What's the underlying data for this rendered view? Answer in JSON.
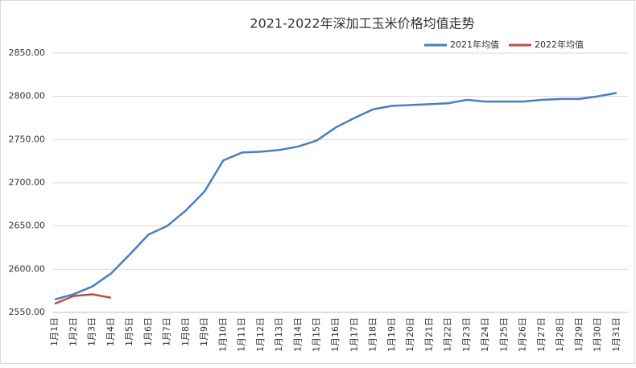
{
  "chart_data": {
    "type": "line",
    "title": "2021-2022年深加工玉米价格均值走势",
    "categories": [
      "1月1日",
      "1月2日",
      "1月3日",
      "1月4日",
      "1月5日",
      "1月6日",
      "1月7日",
      "1月8日",
      "1月9日",
      "1月10日",
      "1月11日",
      "1月12日",
      "1月13日",
      "1月14日",
      "1月15日",
      "1月16日",
      "1月17日",
      "1月18日",
      "1月19日",
      "1月20日",
      "1月21日",
      "1月22日",
      "1月23日",
      "1月24日",
      "1月25日",
      "1月26日",
      "1月27日",
      "1月28日",
      "1月29日",
      "1月30日",
      "1月31日"
    ],
    "series": [
      {
        "name": "2021年均值",
        "color": "#4a7ebb",
        "values": [
          2565,
          2571,
          2580,
          2595,
          2617,
          2640,
          2650,
          2668,
          2690,
          2726,
          2735,
          2736,
          2738,
          2742,
          2749,
          2764,
          2775,
          2785,
          2789,
          2790,
          2791,
          2792,
          2796,
          2794,
          2794,
          2794,
          2796,
          2797,
          2797,
          2800,
          2804
        ]
      },
      {
        "name": "2022年均值",
        "color": "#be4b48",
        "values": [
          2560,
          2569,
          2571,
          2567,
          null,
          null,
          null,
          null,
          null,
          null,
          null,
          null,
          null,
          null,
          null,
          null,
          null,
          null,
          null,
          null,
          null,
          null,
          null,
          null,
          null,
          null,
          null,
          null,
          null,
          null,
          null
        ]
      }
    ],
    "ylim": [
      2550,
      2850
    ],
    "yticks": [
      {
        "value": 2550,
        "label": "2550.00"
      },
      {
        "value": 2600,
        "label": "2600.00"
      },
      {
        "value": 2650,
        "label": "2650.00"
      },
      {
        "value": 2700,
        "label": "2700.00"
      },
      {
        "value": 2750,
        "label": "2750.00"
      },
      {
        "value": 2800,
        "label": "2800.00"
      },
      {
        "value": 2850,
        "label": "2850.00"
      }
    ],
    "grid": true,
    "legend": "top-right"
  }
}
